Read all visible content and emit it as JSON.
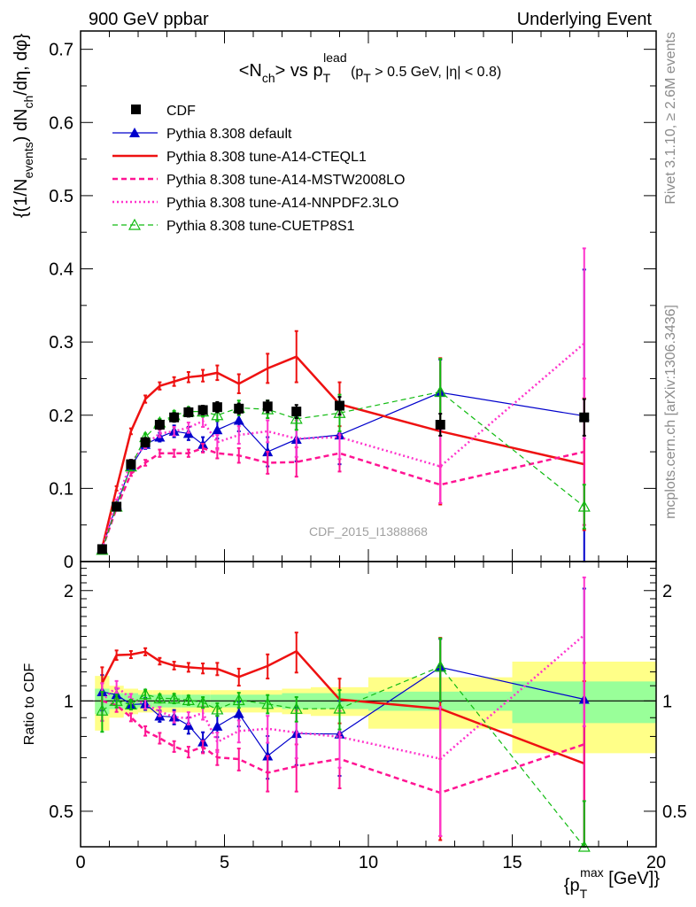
{
  "header": {
    "left": "900 GeV ppbar",
    "right": "Underlying Event"
  },
  "side": {
    "rivet": "Rivet 3.1.10, ≥ 2.6M events",
    "mcplots": "mcplots.cern.ch [arXiv:1306.3436]"
  },
  "chart_data": {
    "type": "line",
    "title": "<N_ch> vs p_T^lead (p_T > 0.5 GeV, |η| < 0.8)",
    "analysis_label": "CDF_2015_I1388868",
    "xlabel": "{p_T^max [GeV]}",
    "ylabel": "{(1/N_events) dN_ch/dη, dφ}",
    "ratio_ylabel": "Ratio to CDF",
    "xlim": [
      0,
      20
    ],
    "ylim": [
      0,
      0.725
    ],
    "ratio_ylim": [
      0.4,
      2.4
    ],
    "ratio_scale": "log",
    "x_ticks": [
      0,
      5,
      10,
      15,
      20
    ],
    "y_ticks": [
      0,
      0.1,
      0.2,
      0.3,
      0.4,
      0.5,
      0.6,
      0.7
    ],
    "ratio_ticks": [
      0.5,
      1,
      2
    ],
    "x": [
      0.75,
      1.25,
      1.75,
      2.25,
      2.75,
      3.25,
      3.75,
      4.25,
      4.75,
      5.5,
      6.5,
      7.5,
      9.0,
      12.5,
      17.5
    ],
    "series": [
      {
        "name": "CDF",
        "color": "#000000",
        "style": "data",
        "values": [
          0.017,
          0.075,
          0.133,
          0.163,
          0.187,
          0.197,
          0.204,
          0.207,
          0.211,
          0.209,
          0.212,
          0.205,
          0.213,
          0.187,
          0.197
        ],
        "errors": [
          0.003,
          0.005,
          0.006,
          0.006,
          0.006,
          0.006,
          0.006,
          0.006,
          0.007,
          0.007,
          0.008,
          0.009,
          0.012,
          0.015,
          0.025
        ]
      },
      {
        "name": "Pythia 8.308 default",
        "color": "#0000cc",
        "style": "solid-triangle",
        "values": [
          0.018,
          0.078,
          0.13,
          0.16,
          0.17,
          0.178,
          0.175,
          0.16,
          0.18,
          0.193,
          0.15,
          0.167,
          0.173,
          0.231,
          0.199
        ],
        "errors": [
          0.002,
          0.003,
          0.004,
          0.006,
          0.006,
          0.008,
          0.009,
          0.01,
          0.012,
          0.015,
          0.02,
          0.03,
          0.04,
          0.045,
          0.2
        ]
      },
      {
        "name": "Pythia 8.308 tune-A14-CTEQL1",
        "color": "#ee1111",
        "style": "solid",
        "values": [
          0.019,
          0.1,
          0.178,
          0.222,
          0.24,
          0.246,
          0.252,
          0.254,
          0.258,
          0.243,
          0.264,
          0.28,
          0.215,
          0.178,
          0.133
        ],
        "errors": [
          0.002,
          0.003,
          0.004,
          0.005,
          0.005,
          0.006,
          0.007,
          0.008,
          0.01,
          0.013,
          0.02,
          0.035,
          0.03,
          0.1,
          0.09
        ]
      },
      {
        "name": "Pythia 8.308 tune-A14-MSTW2008LO",
        "color": "#ff1493",
        "style": "dashed",
        "values": [
          0.017,
          0.073,
          0.12,
          0.135,
          0.148,
          0.148,
          0.148,
          0.155,
          0.148,
          0.145,
          0.135,
          0.136,
          0.148,
          0.105,
          0.15
        ],
        "errors": [
          0.002,
          0.003,
          0.003,
          0.004,
          0.005,
          0.005,
          0.005,
          0.006,
          0.007,
          0.01,
          0.015,
          0.02,
          0.025,
          0.025,
          0.1
        ]
      },
      {
        "name": "Pythia 8.308 tune-A14-NNPDF2.3LO",
        "color": "#ff33cc",
        "style": "dotted",
        "values": [
          0.017,
          0.082,
          0.135,
          0.16,
          0.175,
          0.178,
          0.183,
          0.192,
          0.163,
          0.173,
          0.178,
          0.168,
          0.17,
          0.13,
          0.298
        ],
        "errors": [
          0.002,
          0.003,
          0.004,
          0.005,
          0.005,
          0.006,
          0.007,
          0.008,
          0.01,
          0.012,
          0.015,
          0.025,
          0.03,
          0.05,
          0.13
        ]
      },
      {
        "name": "Pythia 8.308 tune-CUETP8S1",
        "color": "#11bb11",
        "style": "dashed-triangle-open",
        "values": [
          0.016,
          0.075,
          0.13,
          0.17,
          0.19,
          0.2,
          0.205,
          0.205,
          0.2,
          0.21,
          0.208,
          0.195,
          0.203,
          0.232,
          0.075
        ],
        "errors": [
          0.002,
          0.003,
          0.004,
          0.005,
          0.005,
          0.006,
          0.006,
          0.007,
          0.008,
          0.01,
          0.012,
          0.015,
          0.025,
          0.045,
          0.03
        ]
      }
    ],
    "ratio_band": {
      "x_edges": [
        0.5,
        1.0,
        1.5,
        2.0,
        2.5,
        3.0,
        3.5,
        4.0,
        4.5,
        5.0,
        6.0,
        7.0,
        8.0,
        10.0,
        15.0,
        20.0
      ],
      "inner": [
        0.08,
        0.05,
        0.05,
        0.04,
        0.04,
        0.04,
        0.04,
        0.04,
        0.04,
        0.04,
        0.04,
        0.05,
        0.05,
        0.06,
        0.13
      ],
      "outer": [
        0.17,
        0.1,
        0.08,
        0.07,
        0.07,
        0.07,
        0.07,
        0.07,
        0.07,
        0.07,
        0.07,
        0.08,
        0.09,
        0.16,
        0.28
      ],
      "inner_color": "#99ff99",
      "outer_color": "#ffff88"
    }
  }
}
